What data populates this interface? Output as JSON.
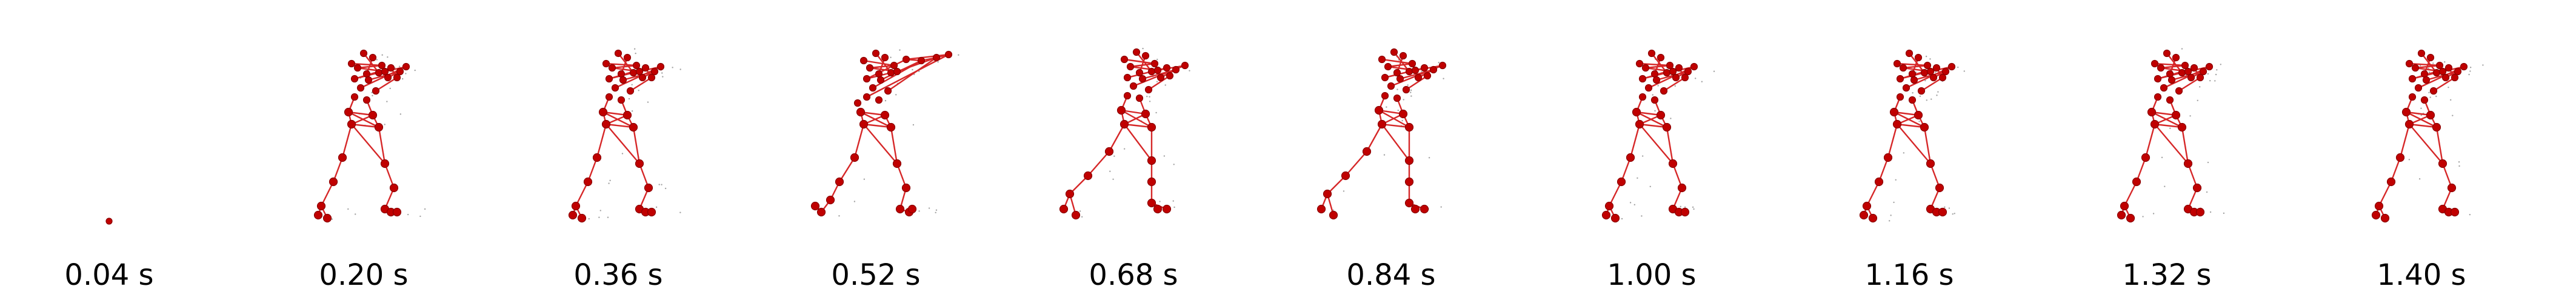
{
  "figure": {
    "frames": [
      {
        "time_label": "0.04 s",
        "pose": "start"
      },
      {
        "time_label": "0.20 s",
        "pose": "punch"
      },
      {
        "time_label": "0.36 s",
        "pose": "punch"
      },
      {
        "time_label": "0.52 s",
        "pose": "extended-punch"
      },
      {
        "time_label": "0.68 s",
        "pose": "lunge"
      },
      {
        "time_label": "0.84 s",
        "pose": "lunge"
      },
      {
        "time_label": "1.00 s",
        "pose": "punch"
      },
      {
        "time_label": "1.16 s",
        "pose": "punch"
      },
      {
        "time_label": "1.32 s",
        "pose": "punch"
      },
      {
        "time_label": "1.40 s",
        "pose": "punch"
      }
    ],
    "colors": {
      "skeleton": "#d62728",
      "joint_fill": "#c00000",
      "joint_edge": "#8b0000",
      "motion_trail": "#555555",
      "label": "#000000"
    }
  }
}
